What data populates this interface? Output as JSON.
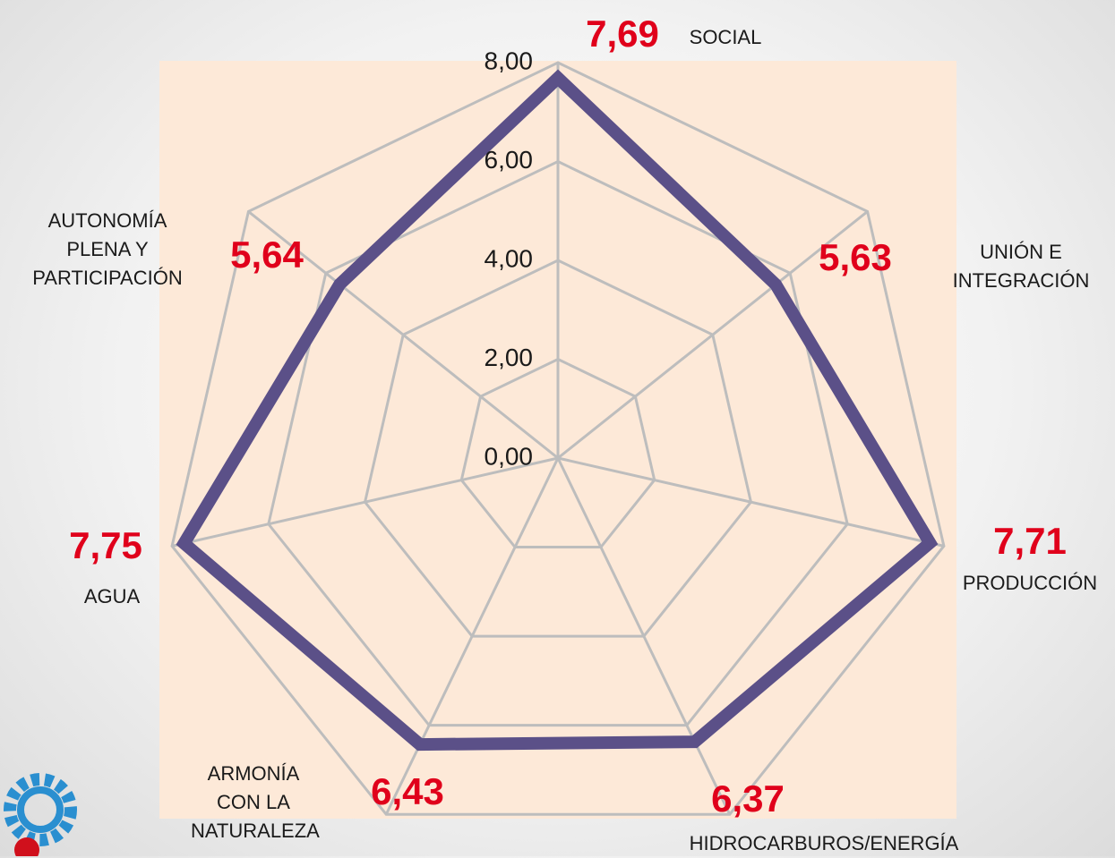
{
  "chart_data": {
    "type": "radar",
    "categories": [
      "SOCIAL",
      "UNIÓN E INTEGRACIÓN",
      "PRODUCCIÓN",
      "HIDROCARBUROS/ENERGÍA",
      "ARMONÍA CON LA NATURALEZA",
      "AGUA",
      "AUTONOMÍA PLENA Y PARTICIPACIÓN"
    ],
    "values": [
      7.69,
      5.63,
      7.71,
      6.37,
      6.43,
      7.75,
      5.64
    ],
    "value_labels": [
      "7,69",
      "5,63",
      "7,71",
      "6,37",
      "6,43",
      "7,75",
      "5,64"
    ],
    "color": "#5b5088",
    "ylim": [
      0,
      8
    ],
    "yticks": [
      {
        "value": 0,
        "label": "0,00"
      },
      {
        "value": 2,
        "label": "2,00"
      },
      {
        "value": 4,
        "label": "4,00"
      },
      {
        "value": 6,
        "label": "6,00"
      },
      {
        "value": 8,
        "label": "8,00"
      }
    ],
    "grid": true
  }
}
